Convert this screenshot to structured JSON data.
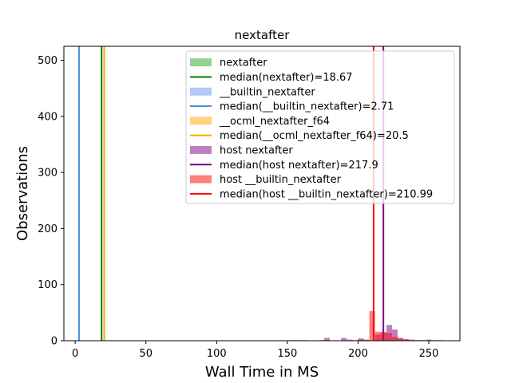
{
  "chart_data": {
    "type": "histogram",
    "title": "nextafter",
    "xlabel": "Wall Time in MS",
    "ylabel": "Observations",
    "xlim": [
      -8,
      272
    ],
    "ylim": [
      0,
      525
    ],
    "xticks": [
      0,
      50,
      100,
      150,
      200,
      250
    ],
    "yticks": [
      0,
      100,
      200,
      300,
      400,
      500
    ],
    "grid": false,
    "legend_position": "top-right",
    "series": [
      {
        "name": "nextafter",
        "kind": "histogram",
        "color": "#2ca02c",
        "alpha": 0.5,
        "bins": [
          {
            "x0": 18.4,
            "x1": 18.9,
            "count": 524
          }
        ]
      },
      {
        "name": "median(nextafter)=18.67",
        "kind": "vline",
        "color": "#008000",
        "x": 18.67
      },
      {
        "name": "__builtin_nextafter",
        "kind": "histogram",
        "color": "#6495ed",
        "alpha": 0.5,
        "bins": [
          {
            "x0": 2.5,
            "x1": 2.9,
            "count": 524
          }
        ]
      },
      {
        "name": "median(__builtin_nextafter)=2.71",
        "kind": "vline",
        "color": "#4a90e2",
        "x": 2.71
      },
      {
        "name": "__ocml_nextafter_f64",
        "kind": "histogram",
        "color": "#ffa500",
        "alpha": 0.5,
        "bins": [
          {
            "x0": 20.3,
            "x1": 20.7,
            "count": 524
          }
        ]
      },
      {
        "name": "median(__ocml_nextafter_f64)=20.5",
        "kind": "vline",
        "color": "#ffa500",
        "x": 20.5
      },
      {
        "name": "host nextafter",
        "kind": "histogram",
        "color": "#800080",
        "alpha": 0.5,
        "bins": [
          {
            "x0": 152,
            "x1": 156,
            "count": 1
          },
          {
            "x0": 156,
            "x1": 160,
            "count": 1
          },
          {
            "x0": 160,
            "x1": 164,
            "count": 1
          },
          {
            "x0": 172,
            "x1": 176,
            "count": 1
          },
          {
            "x0": 176,
            "x1": 180,
            "count": 5
          },
          {
            "x0": 188,
            "x1": 192,
            "count": 5
          },
          {
            "x0": 192,
            "x1": 196,
            "count": 2
          },
          {
            "x0": 200,
            "x1": 204,
            "count": 4
          },
          {
            "x0": 204,
            "x1": 208,
            "count": 1
          },
          {
            "x0": 212,
            "x1": 216,
            "count": 11
          },
          {
            "x0": 216,
            "x1": 220,
            "count": 15
          },
          {
            "x0": 220,
            "x1": 224,
            "count": 28
          },
          {
            "x0": 224,
            "x1": 228,
            "count": 20
          },
          {
            "x0": 228,
            "x1": 232,
            "count": 5
          },
          {
            "x0": 232,
            "x1": 236,
            "count": 3
          },
          {
            "x0": 236,
            "x1": 240,
            "count": 1
          },
          {
            "x0": 240,
            "x1": 244,
            "count": 1
          },
          {
            "x0": 244,
            "x1": 248,
            "count": 1
          },
          {
            "x0": 248,
            "x1": 252,
            "count": 2
          },
          {
            "x0": 252,
            "x1": 256,
            "count": 1
          },
          {
            "x0": 256,
            "x1": 260,
            "count": 1
          }
        ]
      },
      {
        "name": "median(host nextafter)=217.9",
        "kind": "vline",
        "color": "#800080",
        "x": 217.9
      },
      {
        "name": "host __builtin_nextafter",
        "kind": "histogram",
        "color": "#ff0000",
        "alpha": 0.5,
        "bins": [
          {
            "x0": 176,
            "x1": 180,
            "count": 1
          },
          {
            "x0": 196,
            "x1": 200,
            "count": 1
          },
          {
            "x0": 200,
            "x1": 204,
            "count": 2
          },
          {
            "x0": 204,
            "x1": 208,
            "count": 2
          },
          {
            "x0": 208,
            "x1": 212,
            "count": 53
          },
          {
            "x0": 212,
            "x1": 216,
            "count": 16
          },
          {
            "x0": 216,
            "x1": 220,
            "count": 15
          },
          {
            "x0": 220,
            "x1": 224,
            "count": 14
          },
          {
            "x0": 224,
            "x1": 228,
            "count": 7
          },
          {
            "x0": 228,
            "x1": 232,
            "count": 4
          },
          {
            "x0": 232,
            "x1": 236,
            "count": 2
          },
          {
            "x0": 236,
            "x1": 240,
            "count": 2
          },
          {
            "x0": 240,
            "x1": 244,
            "count": 1
          }
        ]
      },
      {
        "name": "median(host __builtin_nextafter)=210.99",
        "kind": "vline",
        "color": "#ff0000",
        "x": 210.99
      }
    ],
    "legend": [
      {
        "label": "  nextafter",
        "swatch": "patch",
        "color": "#2ca02c",
        "alpha": 0.5
      },
      {
        "label": "  median(nextafter)=18.67",
        "swatch": "line",
        "color": "#008000"
      },
      {
        "label": "  __builtin_nextafter",
        "swatch": "patch",
        "color": "#6495ed",
        "alpha": 0.5
      },
      {
        "label": "  median(__builtin_nextafter)=2.71",
        "swatch": "line",
        "color": "#4a90e2"
      },
      {
        "label": "  __ocml_nextafter_f64",
        "swatch": "patch",
        "color": "#ffa500",
        "alpha": 0.5
      },
      {
        "label": "  median(__ocml_nextafter_f64)=20.5",
        "swatch": "line",
        "color": "#ffa500"
      },
      {
        "label": "host nextafter",
        "swatch": "patch",
        "color": "#800080",
        "alpha": 0.5
      },
      {
        "label": "median(host nextafter)=217.9",
        "swatch": "line",
        "color": "#800080"
      },
      {
        "label": "host __builtin_nextafter",
        "swatch": "patch",
        "color": "#ff0000",
        "alpha": 0.5
      },
      {
        "label": "median(host __builtin_nextafter)=210.99",
        "swatch": "line",
        "color": "#ff0000"
      }
    ]
  }
}
